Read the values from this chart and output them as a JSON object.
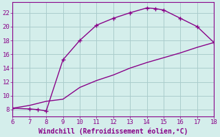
{
  "xlabel": "Windchill (Refroidissement éolien,°C)",
  "background_color": "#d4eeeb",
  "line_color": "#880088",
  "grid_color": "#aacccc",
  "curve1_x": [
    6,
    7,
    7.5,
    8,
    9,
    10,
    11,
    12,
    13,
    14,
    14.5,
    15,
    16,
    17,
    18
  ],
  "curve1_y": [
    8.2,
    8.1,
    8.0,
    7.8,
    15.2,
    18.0,
    20.2,
    21.2,
    22.0,
    22.7,
    22.6,
    22.4,
    21.2,
    20.0,
    17.7
  ],
  "curve2_x": [
    6,
    7,
    8,
    9,
    10,
    11,
    12,
    13,
    14,
    15,
    16,
    17,
    18
  ],
  "curve2_y": [
    8.2,
    8.6,
    9.2,
    9.5,
    11.2,
    12.2,
    13.0,
    14.0,
    14.8,
    15.5,
    16.2,
    17.0,
    17.7
  ],
  "xlim": [
    6,
    18
  ],
  "ylim": [
    7.0,
    23.5
  ],
  "xticks": [
    6,
    7,
    8,
    9,
    10,
    11,
    12,
    13,
    14,
    15,
    16,
    17,
    18
  ],
  "yticks": [
    8,
    10,
    12,
    14,
    16,
    18,
    20,
    22
  ],
  "tick_fontsize": 6.5,
  "xlabel_fontsize": 7
}
